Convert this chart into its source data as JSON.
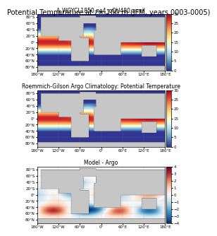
{
  "title": "Potential Temperature at z=-100 m (JFM, years 0003-0005)",
  "panel1_title": "A_WCYCL1850.ne4_oQU480.anvil",
  "panel2_title": "Roemmich-Gilson Argo Climatology: Potential Temperature",
  "panel3_title": "Model - Argo",
  "cmap1": "RdYlBu_r",
  "cmap2": "RdYlBu_r",
  "cmap3": "RdBu_r",
  "vmin1": 0,
  "vmax1": 30,
  "vmin3": -4,
  "vmax3": 4,
  "lon_ticks": [
    -180,
    -120,
    -60,
    0,
    60,
    120,
    180
  ],
  "lat_ticks": [
    -80,
    -60,
    -40,
    -20,
    0,
    20,
    40,
    60,
    80
  ],
  "lon_labels": [
    "180°W",
    "120°W",
    "60°W",
    "0°",
    "60°E",
    "120°E",
    "180°E"
  ],
  "lat_labels": [
    "80°S",
    "60°S",
    "40°S",
    "20°S",
    "0°",
    "20°N",
    "40°N",
    "60°N",
    "80°N"
  ],
  "colorbar_ticks1": [
    0,
    5,
    10,
    15,
    20,
    25,
    30
  ],
  "colorbar_ticks3": [
    -4,
    -3,
    -2,
    -1,
    0,
    1,
    2,
    3,
    4
  ],
  "bg_color": "#c8c8c8",
  "title_fontsize": 7,
  "panel_title_fontsize": 5.5,
  "tick_fontsize": 4,
  "colorbar_fontsize": 4
}
